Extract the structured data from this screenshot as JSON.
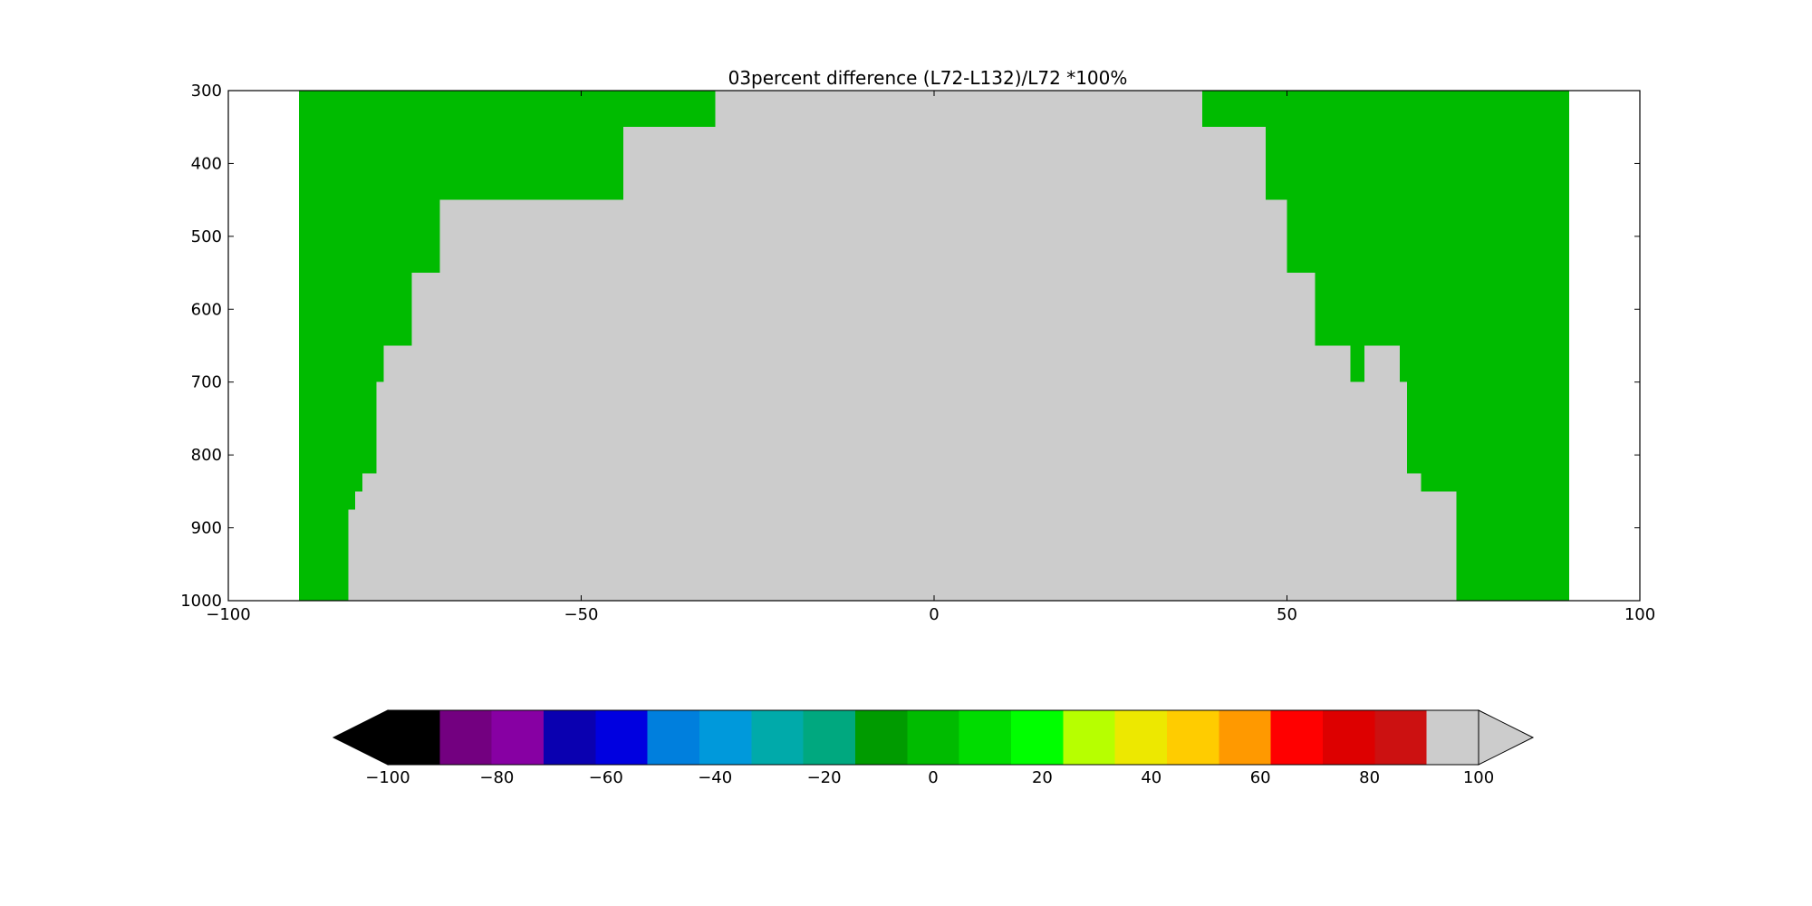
{
  "chart_data": {
    "type": "heatmap",
    "title": "03percent difference (L72-L132)/L72 *100%",
    "xlabel": "",
    "ylabel": "",
    "xlim": [
      -100,
      100
    ],
    "ylim": [
      1000,
      300
    ],
    "x_ticks": [
      "−100",
      "−50",
      "0",
      "50",
      "100"
    ],
    "x_tick_values": [
      -100,
      -50,
      0,
      50,
      100
    ],
    "y_ticks": [
      "300",
      "400",
      "500",
      "600",
      "700",
      "800",
      "900",
      "1000"
    ],
    "y_tick_values": [
      300,
      400,
      500,
      600,
      700,
      800,
      900,
      1000
    ],
    "data_lat_range": [
      -90,
      90
    ],
    "regions": [
      {
        "name": "0 to 10",
        "color": "#00bb00"
      },
      {
        "name": "> 100",
        "color": "#cccccc"
      }
    ],
    "above_100_region_bounds": [
      {
        "p_top": 300,
        "p_bottom": 350,
        "lat_min": -31,
        "lat_max": 38
      },
      {
        "p_top": 350,
        "p_bottom": 450,
        "lat_min": -44,
        "lat_max": 47
      },
      {
        "p_top": 450,
        "p_bottom": 550,
        "lat_min": -70,
        "lat_max": 50
      },
      {
        "p_top": 550,
        "p_bottom": 650,
        "lat_min": -74,
        "lat_max": 54
      },
      {
        "p_top": 650,
        "p_bottom": 700,
        "lat_min": -78,
        "lat_max": 66
      },
      {
        "p_top": 700,
        "p_bottom": 825,
        "lat_min": -79,
        "lat_max": 67
      },
      {
        "p_top": 825,
        "p_bottom": 850,
        "lat_min": -81,
        "lat_max": 69
      },
      {
        "p_top": 850,
        "p_bottom": 875,
        "lat_min": -82,
        "lat_max": 74
      },
      {
        "p_top": 875,
        "p_bottom": 1000,
        "lat_min": -83,
        "lat_max": 74
      }
    ],
    "green_islands": [
      {
        "p_top": 650,
        "p_bottom": 700,
        "lat_min": 59,
        "lat_max": 61
      }
    ],
    "colorbar": {
      "orientation": "horizontal",
      "extend": "both",
      "tick_labels": [
        "−100",
        "−80",
        "−60",
        "−40",
        "−20",
        "0",
        "20",
        "40",
        "60",
        "80",
        "100"
      ],
      "tick_values": [
        -100,
        -80,
        -60,
        -40,
        -20,
        0,
        20,
        40,
        60,
        80,
        100
      ],
      "under_color": "#000000",
      "over_color": "#cccccc",
      "colors": [
        "#000000",
        "#730080",
        "#8700a3",
        "#0a00b0",
        "#0000e0",
        "#007fdd",
        "#0099db",
        "#00aaaa",
        "#00a87f",
        "#009b00",
        "#00bb00",
        "#00dc00",
        "#00ff00",
        "#b7ff00",
        "#ede800",
        "#ffcc00",
        "#ff9900",
        "#ff0000",
        "#dd0000",
        "#cc1111",
        "#cccccc"
      ]
    }
  }
}
